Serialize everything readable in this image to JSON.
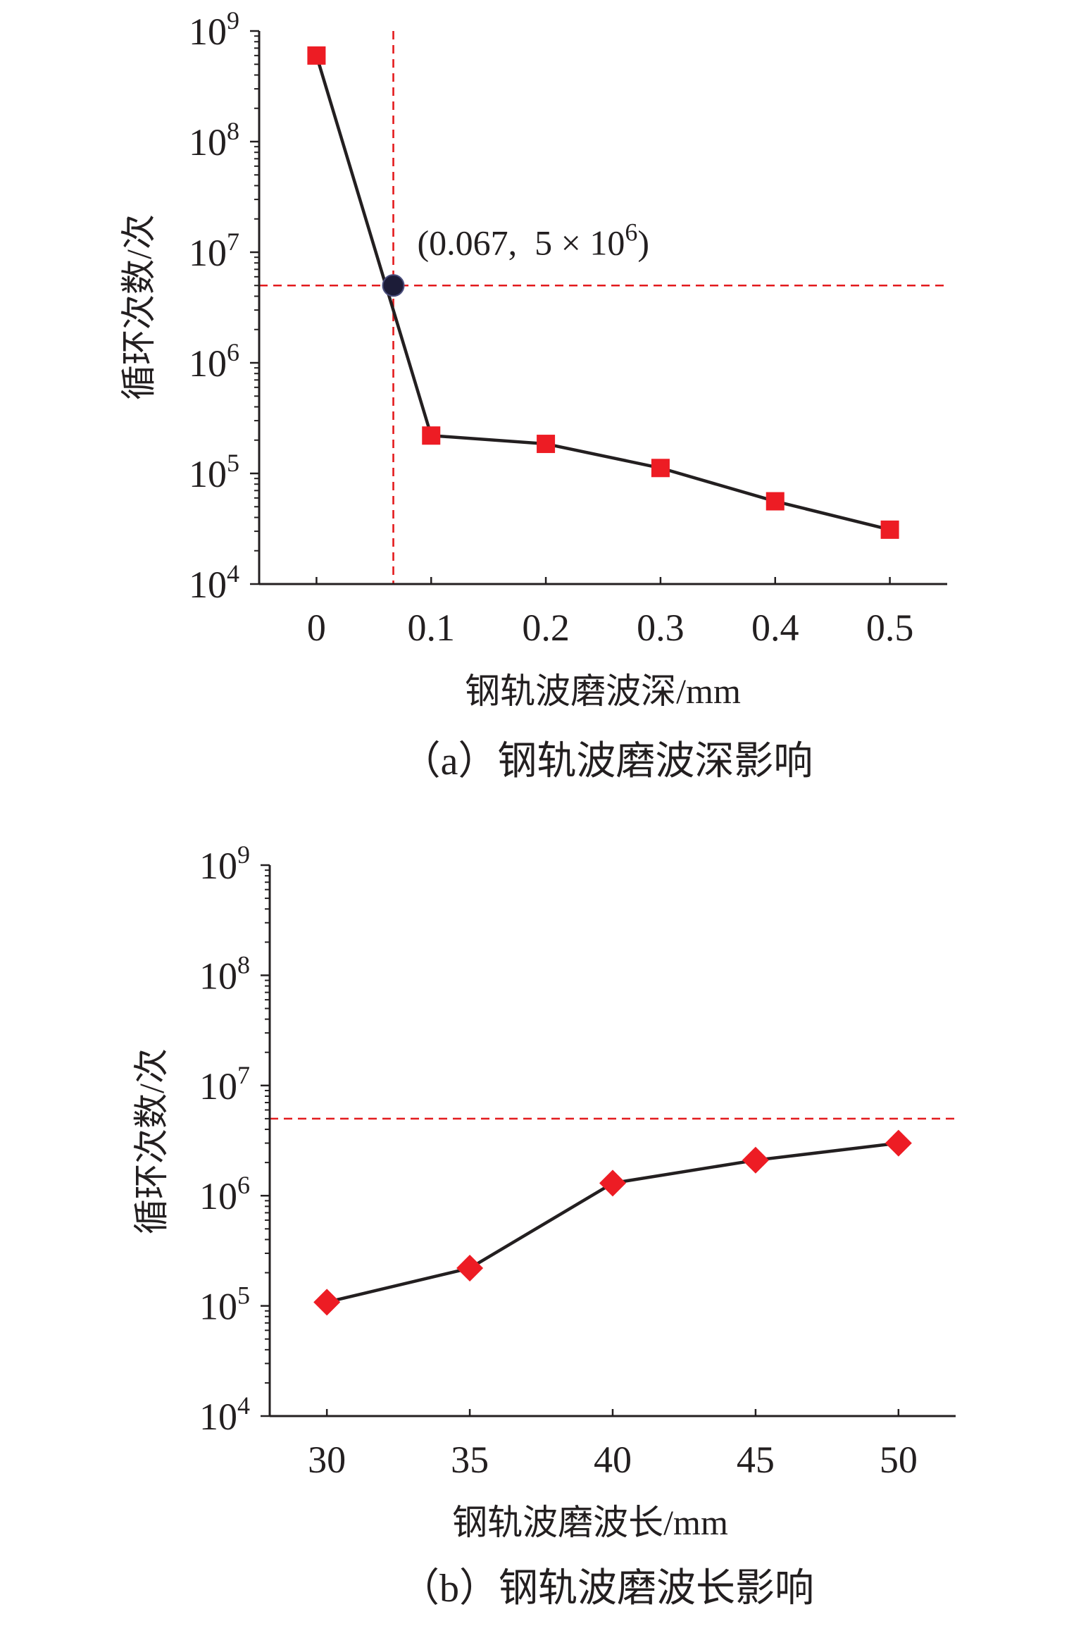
{
  "chart_data": [
    {
      "type": "line",
      "x": [
        0,
        0.1,
        0.2,
        0.3,
        0.4,
        0.5
      ],
      "xlim": [
        -0.05,
        0.55
      ],
      "xticks": [
        0,
        0.1,
        0.2,
        0.3,
        0.4,
        0.5
      ],
      "xtick_labels": [
        "0",
        "0.1",
        "0.2",
        "0.3",
        "0.4",
        "0.5"
      ],
      "yscale": "log",
      "ylim": [
        10000,
        1000000000
      ],
      "yticks": [
        1000000000,
        100000000,
        10000000,
        1000000,
        100000,
        10000
      ],
      "ytick_labels": [
        {
          "base": "10",
          "exp": "9"
        },
        {
          "base": "10",
          "exp": "8"
        },
        {
          "base": "10",
          "exp": "7"
        },
        {
          "base": "10",
          "exp": "6"
        },
        {
          "base": "10",
          "exp": "5"
        },
        {
          "base": "10",
          "exp": "4"
        }
      ],
      "xlabel": "钢轨波磨波深/mm",
      "ylabel": "循环次数/次",
      "caption": "（a）钢轨波磨波深影响",
      "series": [
        {
          "values": [
            600000000,
            220000,
            185000,
            112000,
            56000,
            31000
          ],
          "marker": "square",
          "marker_color": "#ed1c24",
          "line_color": "#231f20"
        }
      ],
      "reference_lines": [
        {
          "orientation": "vertical",
          "value": 0.067
        },
        {
          "orientation": "horizontal",
          "value": 5000000
        }
      ],
      "reference_color": "#e31a1c",
      "highlight": {
        "x": 0.067,
        "y": 5000000,
        "color": "#1c1c38",
        "label": "(0.067,  5 × 10",
        "label_exp": "6",
        "label_close": ")"
      },
      "grid": false
    },
    {
      "type": "line",
      "x": [
        30,
        35,
        40,
        45,
        50
      ],
      "xlim": [
        28,
        52
      ],
      "xticks": [
        30,
        35,
        40,
        45,
        50
      ],
      "xtick_labels": [
        "30",
        "35",
        "40",
        "45",
        "50"
      ],
      "yscale": "log",
      "ylim": [
        10000,
        1000000000
      ],
      "yticks": [
        1000000000,
        100000000,
        10000000,
        1000000,
        100000,
        10000
      ],
      "ytick_labels": [
        {
          "base": "10",
          "exp": "9"
        },
        {
          "base": "10",
          "exp": "8"
        },
        {
          "base": "10",
          "exp": "7"
        },
        {
          "base": "10",
          "exp": "6"
        },
        {
          "base": "10",
          "exp": "5"
        },
        {
          "base": "10",
          "exp": "4"
        }
      ],
      "xlabel": "钢轨波磨波长/mm",
      "ylabel": "循环次数/次",
      "caption": "（b）钢轨波磨波长影响",
      "series": [
        {
          "values": [
            108000,
            220000,
            1300000,
            2100000,
            3000000
          ],
          "marker": "diamond",
          "marker_color": "#ed1c24",
          "line_color": "#231f20"
        }
      ],
      "reference_lines": [
        {
          "orientation": "horizontal",
          "value": 5000000
        }
      ],
      "reference_color": "#e31a1c",
      "grid": false
    }
  ]
}
